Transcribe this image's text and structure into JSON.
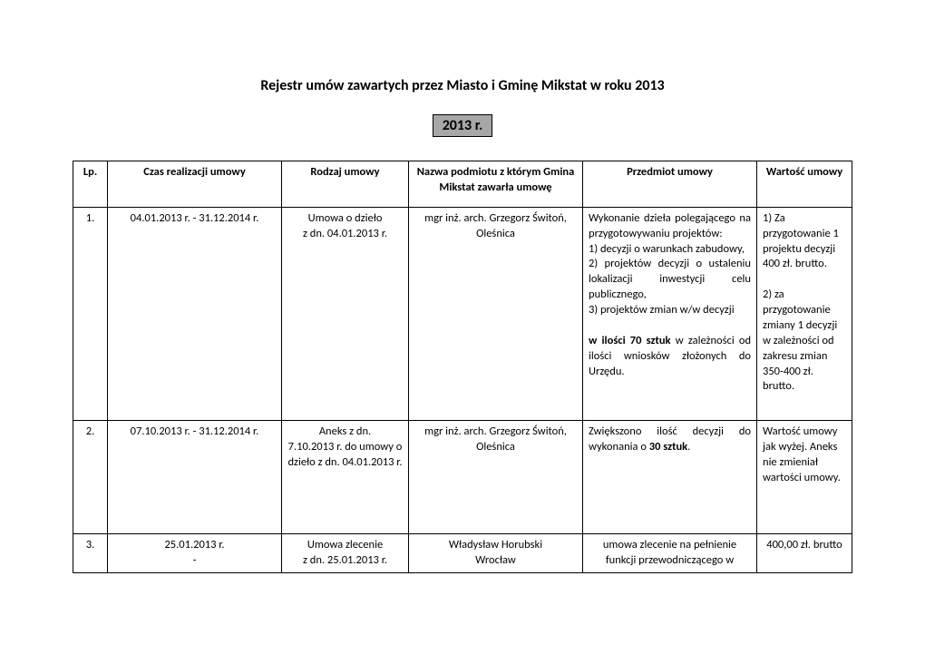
{
  "title": "Rejestr umów zawartych przez Miasto i Gminę Mikstat w roku 2013",
  "year_badge": "2013 r.",
  "columns": {
    "lp": "Lp.",
    "czas": "Czas realizacji umowy",
    "rodzaj": "Rodzaj umowy",
    "nazwa": "Nazwa podmiotu z którym Gmina Mikstat zawarła umowę",
    "przedmiot": "Przedmiot umowy",
    "wartosc": "Wartość umowy"
  },
  "rows": [
    {
      "lp": "1.",
      "czas": "04.01.2013 r. - 31.12.2014 r.",
      "rodzaj_l1": "Umowa o dzieło",
      "rodzaj_l2": "z dn. 04.01.2013 r.",
      "nazwa_l1": "mgr inż. arch. Grzegorz Świtoń,",
      "nazwa_l2": "Oleśnica",
      "przedmiot_l1": "Wykonanie dzieła polegającego na przygotowywaniu projektów:",
      "przedmiot_l2": "1) decyzji o warunkach zabudowy,",
      "przedmiot_l3": "2) projektów decyzji o ustaleniu lokalizacji inwestycji celu publicznego,",
      "przedmiot_l4": "3) projektów zmian w/w decyzji",
      "przedmiot_l5a": "w ilości 70 sztuk",
      "przedmiot_l5b": "w zależności od ilości wniosków złożonych do Urzędu.",
      "wartosc_l1": "1) Za przygotowanie 1 projektu decyzji 400 zł. brutto.",
      "wartosc_l2": "2) za przygotowanie zmiany 1 decyzji w zależności od zakresu zmian 350-400 zł. brutto."
    },
    {
      "lp": "2.",
      "czas": "07.10.2013 r. - 31.12.2014 r.",
      "rodzaj_l1": "Aneks z dn.",
      "rodzaj_l2": "7.10.2013 r. do umowy o dzieło z dn. 04.01.2013 r.",
      "nazwa_l1": "mgr inż. arch. Grzegorz Świtoń,",
      "nazwa_l2": "Oleśnica",
      "przedmiot_l1a": "Zwiększono ilość decyzji do wykonania o ",
      "przedmiot_l1b": "30 sztuk",
      "przedmiot_l1c": ".",
      "wartosc_l1": "Wartość umowy jak wyżej. Aneks nie zmieniał wartości umowy."
    },
    {
      "lp": "3.",
      "czas_l1": "25.01.2013 r.",
      "czas_l2": "-",
      "rodzaj_l1": "Umowa zlecenie",
      "rodzaj_l2": "z dn. 25.01.2013 r.",
      "nazwa_l1": "Władysław Horubski",
      "nazwa_l2": "Wrocław",
      "przedmiot_l1": "umowa zlecenie na pełnienie funkcji przewodniczącego w",
      "wartosc_l1": "400,00 zł. brutto"
    }
  ]
}
